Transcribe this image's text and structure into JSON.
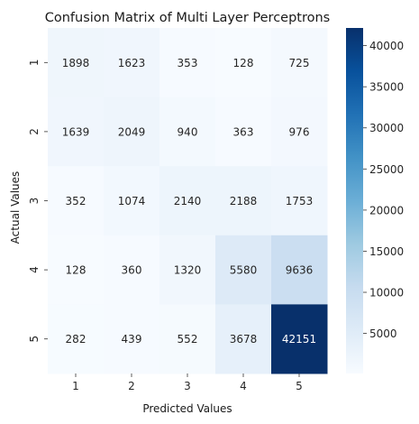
{
  "chart_data": {
    "type": "heatmap",
    "title": "Confusion Matrix of Multi Layer Perceptrons",
    "xlabel": "Predicted Values",
    "ylabel": "Actual Values",
    "x_categories": [
      "1",
      "2",
      "3",
      "4",
      "5"
    ],
    "y_categories": [
      "1",
      "2",
      "3",
      "4",
      "5"
    ],
    "values": [
      [
        1898,
        1623,
        353,
        128,
        725
      ],
      [
        1639,
        2049,
        940,
        363,
        976
      ],
      [
        352,
        1074,
        2140,
        2188,
        1753
      ],
      [
        128,
        360,
        1320,
        5580,
        9636
      ],
      [
        282,
        439,
        552,
        3678,
        42151
      ]
    ],
    "colormap": "Blues",
    "colorbar": {
      "min": 128,
      "max": 42151,
      "ticks": [
        5000,
        10000,
        15000,
        20000,
        25000,
        30000,
        35000,
        40000
      ]
    },
    "grid": false,
    "annotated": true
  }
}
